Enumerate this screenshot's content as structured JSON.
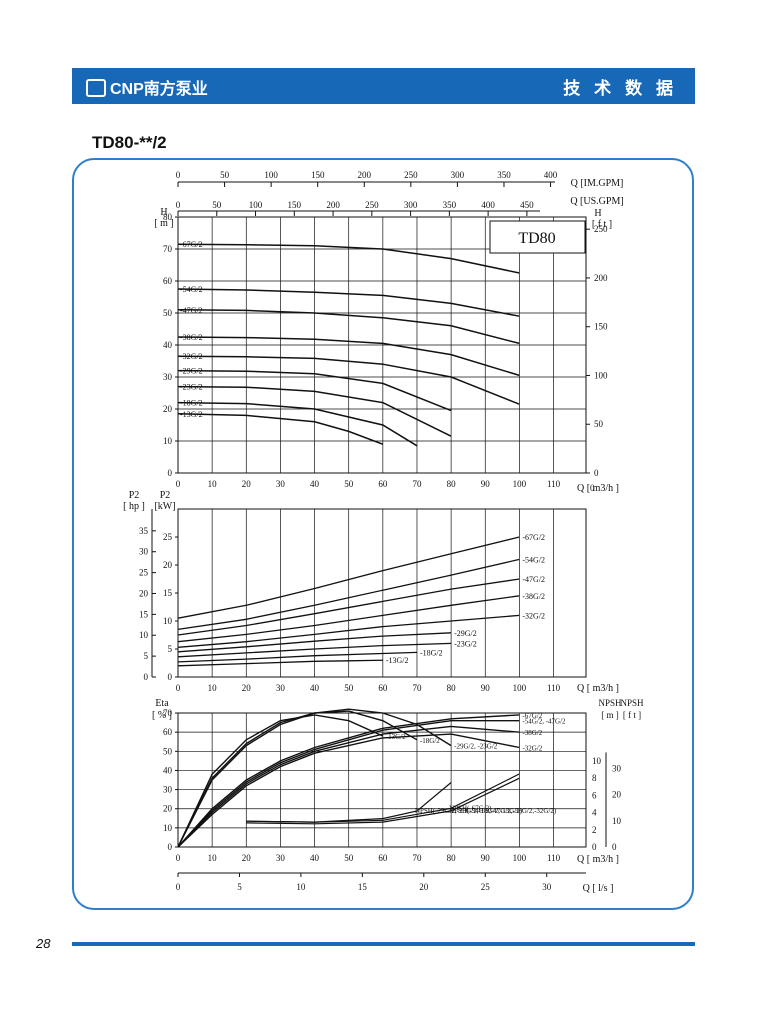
{
  "header": {
    "brand": "CNP南方泵业",
    "section_title": "技 术 数 据"
  },
  "model_title": "TD80-**/2",
  "page_number": "28",
  "chart_data": [
    {
      "type": "line",
      "name_box": "TD80",
      "top_axes": [
        {
          "label": "Q [IM.GPM]",
          "ticks": [
            0,
            50,
            100,
            150,
            200,
            250,
            300,
            350,
            400
          ]
        },
        {
          "label": "Q [US.GPM]",
          "ticks": [
            0,
            50,
            100,
            150,
            200,
            250,
            300,
            350,
            400,
            450
          ]
        }
      ],
      "xlabel": "Q [ m3/h ]",
      "xlim": [
        0,
        120
      ],
      "xticks": [
        0,
        10,
        20,
        30,
        40,
        50,
        60,
        70,
        80,
        90,
        100,
        110
      ],
      "ylabel": "H [ m ]",
      "ylim": [
        0,
        80
      ],
      "yticks": [
        0,
        10,
        20,
        30,
        40,
        50,
        60,
        70,
        80
      ],
      "y2label": "H [ f t ]",
      "y2ticks": [
        0,
        50,
        100,
        150,
        200,
        250
      ],
      "series": [
        {
          "name": "-67G/2",
          "x": [
            0,
            20,
            40,
            60,
            80,
            100
          ],
          "y": [
            71.5,
            71.3,
            71,
            70,
            67,
            62.5
          ]
        },
        {
          "name": "-54G/2",
          "x": [
            0,
            20,
            40,
            60,
            80,
            100
          ],
          "y": [
            57.5,
            57.2,
            56.5,
            55.5,
            53,
            49
          ]
        },
        {
          "name": "-47G/2",
          "x": [
            0,
            20,
            40,
            60,
            80,
            100
          ],
          "y": [
            51,
            50.8,
            50,
            48.5,
            46,
            40.5
          ]
        },
        {
          "name": "-38G/2",
          "x": [
            0,
            20,
            40,
            60,
            80,
            100
          ],
          "y": [
            42.5,
            42.3,
            41.8,
            40.5,
            37,
            30.5
          ]
        },
        {
          "name": "-32G/2",
          "x": [
            0,
            20,
            40,
            60,
            80,
            100
          ],
          "y": [
            36.5,
            36.3,
            35.8,
            34,
            30,
            21.5
          ]
        },
        {
          "name": "-29G/2",
          "x": [
            0,
            20,
            40,
            60,
            80
          ],
          "y": [
            32,
            31.8,
            31,
            28,
            19.5
          ]
        },
        {
          "name": "-23G/2",
          "x": [
            0,
            20,
            40,
            60,
            80
          ],
          "y": [
            27,
            26.8,
            25.5,
            22,
            11.5
          ]
        },
        {
          "name": "-18G/2",
          "x": [
            0,
            20,
            40,
            60,
            70
          ],
          "y": [
            22,
            21.7,
            20,
            15,
            8.5
          ]
        },
        {
          "name": "-13G/2",
          "x": [
            0,
            20,
            40,
            50,
            60
          ],
          "y": [
            18.5,
            18,
            16,
            13,
            9
          ]
        }
      ]
    },
    {
      "type": "line",
      "xlabel": "Q [ m3/h ]",
      "xlim": [
        0,
        120
      ],
      "xticks": [
        0,
        10,
        20,
        30,
        40,
        50,
        60,
        70,
        80,
        90,
        100,
        110
      ],
      "ylabel": "P2 [kW]",
      "ylim": [
        0,
        30
      ],
      "yticks": [
        0,
        5,
        10,
        15,
        20,
        25
      ],
      "y2label": "P2 [ hp ]",
      "y2ticks": [
        0,
        5,
        10,
        15,
        20,
        25,
        30,
        35
      ],
      "series": [
        {
          "name": "-67G/2",
          "x": [
            0,
            20,
            40,
            60,
            80,
            100
          ],
          "y": [
            10.5,
            12.8,
            15.8,
            19,
            22,
            25
          ]
        },
        {
          "name": "-54G/2",
          "x": [
            0,
            20,
            40,
            60,
            80,
            100
          ],
          "y": [
            8.5,
            10.3,
            12.8,
            15.5,
            18.2,
            21
          ]
        },
        {
          "name": "-47G/2",
          "x": [
            0,
            20,
            40,
            60,
            80,
            100
          ],
          "y": [
            7.5,
            9.2,
            11.3,
            13.5,
            15.7,
            17.5
          ]
        },
        {
          "name": "-38G/2",
          "x": [
            0,
            20,
            40,
            60,
            80,
            100
          ],
          "y": [
            6.3,
            7.6,
            9.2,
            11,
            12.8,
            14.5
          ]
        },
        {
          "name": "-32G/2",
          "x": [
            0,
            20,
            40,
            60,
            80,
            100
          ],
          "y": [
            5.3,
            6.3,
            7.6,
            9,
            10,
            11
          ]
        },
        {
          "name": "-29G/2",
          "x": [
            0,
            20,
            40,
            60,
            80
          ],
          "y": [
            4.5,
            5.4,
            6.4,
            7.3,
            7.9
          ]
        },
        {
          "name": "-23G/2",
          "x": [
            0,
            20,
            40,
            60,
            80
          ],
          "y": [
            3.6,
            4.3,
            5,
            5.6,
            6
          ]
        },
        {
          "name": "-18G/2",
          "x": [
            0,
            20,
            40,
            60,
            70
          ],
          "y": [
            2.7,
            3.2,
            3.8,
            4.2,
            4.4
          ]
        },
        {
          "name": "-13G/2",
          "x": [
            0,
            20,
            40,
            50,
            60
          ],
          "y": [
            2,
            2.4,
            2.8,
            2.9,
            3
          ]
        }
      ]
    },
    {
      "type": "line",
      "xlabel": "Q [ m3/h ]",
      "xlim": [
        0,
        120
      ],
      "xticks": [
        0,
        10,
        20,
        30,
        40,
        50,
        60,
        70,
        80,
        90,
        100,
        110
      ],
      "x2label": "Q [ l/s ]",
      "x2ticks": [
        0,
        5,
        10,
        15,
        20,
        25,
        30
      ],
      "ylabel": "Eta [ % ]",
      "ylim": [
        0,
        70
      ],
      "yticks": [
        0,
        10,
        20,
        30,
        40,
        50,
        60,
        70
      ],
      "npsh_label_m": "NPSH [ m ]",
      "npsh_ticks_m": [
        0,
        2,
        4,
        6,
        8,
        10
      ],
      "npsh_label_ft": "NPSH [ f t ]",
      "npsh_ticks_ft": [
        0,
        10,
        20,
        30
      ],
      "series": [
        {
          "name": "-13G/2",
          "x": [
            0,
            10,
            20,
            30,
            40,
            50,
            60
          ],
          "y": [
            0,
            38,
            56,
            66,
            69,
            66,
            58
          ]
        },
        {
          "name": "-18G/2",
          "x": [
            0,
            10,
            20,
            30,
            40,
            50,
            60,
            70
          ],
          "y": [
            0,
            36,
            54,
            65,
            70,
            71,
            66,
            56
          ]
        },
        {
          "name": "-29G/2, -23G/2",
          "x": [
            0,
            10,
            20,
            30,
            40,
            50,
            60,
            70,
            80
          ],
          "y": [
            0,
            35,
            53,
            64,
            70,
            72,
            70,
            64,
            53
          ]
        },
        {
          "name": "-67G/2",
          "x": [
            0,
            10,
            20,
            30,
            40,
            60,
            80,
            100
          ],
          "y": [
            0,
            20,
            35,
            45,
            52,
            62,
            67,
            69
          ]
        },
        {
          "name": "-54G/2, -47G/2",
          "x": [
            0,
            10,
            20,
            30,
            40,
            60,
            80,
            100
          ],
          "y": [
            0,
            19,
            34,
            44,
            51,
            61,
            66,
            66
          ]
        },
        {
          "name": "-38G/2",
          "x": [
            0,
            10,
            20,
            30,
            40,
            60,
            80,
            100
          ],
          "y": [
            0,
            18,
            33,
            43,
            50,
            59,
            63,
            60
          ]
        },
        {
          "name": "-32G/2",
          "x": [
            0,
            10,
            20,
            30,
            40,
            60,
            80,
            100
          ],
          "y": [
            0,
            17,
            32,
            42,
            49,
            57,
            59,
            52
          ]
        },
        {
          "name": "NPSH(-67G/2)",
          "unit": "m",
          "x": [
            20,
            40,
            60,
            80,
            100
          ],
          "y": [
            3.0,
            2.9,
            3.1,
            4.5,
            8.5
          ]
        },
        {
          "name": "NPSH(-54G/2,-47G/2,-38G/2,-32G/2)",
          "unit": "m",
          "x": [
            20,
            40,
            60,
            80,
            100
          ],
          "y": [
            2.8,
            2.7,
            2.9,
            4.2,
            8.0
          ]
        },
        {
          "name": "NPSH(-29G/2,-23G/2,-18G/2,-13G/2)",
          "unit": "m",
          "x": [
            20,
            40,
            60,
            70,
            80
          ],
          "y": [
            3.0,
            2.9,
            3.3,
            4.2,
            7.5
          ]
        }
      ]
    }
  ]
}
